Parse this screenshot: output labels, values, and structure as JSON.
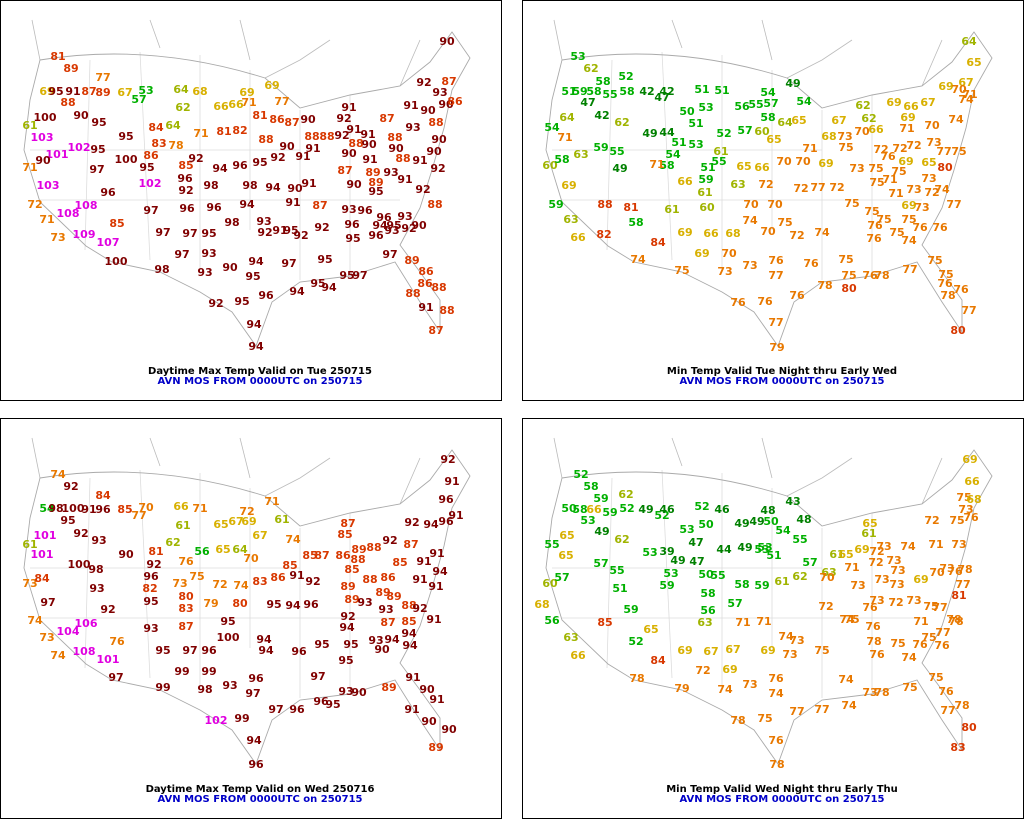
{
  "panels": [
    {
      "title": "Daytime Max Temp Valid on Tue 250715",
      "subtitle": "AVN MOS FROM 0000UTC on 250715",
      "temps": [
        81,
        89,
        77,
        69,
        95,
        91,
        87,
        89,
        88,
        90,
        100,
        95,
        61,
        103,
        95,
        101,
        102,
        90,
        95,
        100,
        71,
        97,
        103,
        96,
        102,
        72,
        108,
        108,
        71,
        85,
        109,
        73,
        107,
        100,
        97,
        97,
        97,
        95,
        97,
        93,
        98,
        93,
        90,
        94,
        95,
        92,
        95,
        96,
        94,
        94,
        94,
        97,
        95,
        95,
        97,
        97,
        67,
        53,
        57,
        64,
        68,
        62,
        64,
        66,
        66,
        71,
        69,
        69,
        81,
        77,
        81,
        82,
        71,
        84,
        83,
        78,
        86,
        95,
        85,
        92,
        96,
        92,
        94,
        98,
        96,
        95,
        98,
        92,
        94,
        88,
        86,
        87,
        90,
        90,
        91,
        90,
        91,
        91,
        88,
        88,
        91,
        92,
        92,
        91,
        91,
        90,
        88,
        90,
        91,
        89,
        87,
        90,
        89,
        87,
        88,
        91,
        93,
        92,
        93,
        90,
        88,
        90,
        90,
        92,
        91,
        88,
        90,
        93,
        91,
        92,
        88,
        95,
        96,
        93,
        96,
        94,
        95,
        96,
        95,
        96,
        93,
        93,
        92,
        90,
        91,
        87,
        92,
        95,
        92,
        91,
        92,
        98,
        93,
        96,
        94,
        96,
        89,
        86,
        86,
        88,
        88,
        91,
        88,
        87,
        95,
        94,
        90,
        87,
        86,
        90
      ]
    },
    {
      "title": "Min Temp Valid Tue Night thru Early Wed",
      "subtitle": "AVN MOS FROM 0000UTC on 250715",
      "temps": [
        53,
        62,
        58,
        52,
        51,
        59,
        58,
        55,
        58,
        42,
        42,
        47,
        47,
        42,
        54,
        64,
        62,
        51,
        51,
        54,
        49,
        50,
        53,
        51,
        56,
        55,
        57,
        54,
        65,
        64,
        58,
        71,
        49,
        44,
        52,
        57,
        60,
        65,
        51,
        53,
        54,
        58,
        55,
        61,
        51,
        59,
        55,
        49,
        60,
        58,
        63,
        69,
        71,
        65,
        66,
        70,
        71,
        70,
        69,
        68,
        73,
        67,
        62,
        62,
        70,
        66,
        69,
        66,
        67,
        69,
        67,
        70,
        74,
        71,
        64,
        65,
        69,
        71,
        70,
        72,
        69,
        65,
        77,
        75,
        80,
        74,
        73,
        72,
        72,
        75,
        73,
        75,
        76,
        71,
        75,
        75,
        72,
        74,
        69,
        73,
        73,
        73,
        71,
        88,
        81,
        59,
        63,
        66,
        82,
        58,
        84,
        69,
        66,
        68,
        69,
        70,
        70,
        70,
        74,
        70,
        75,
        72,
        74,
        72,
        77,
        72,
        59,
        60,
        61,
        66,
        63,
        72,
        75,
        75,
        76,
        76,
        75,
        74,
        75,
        75,
        76,
        76,
        77,
        74,
        75,
        73,
        73,
        76,
        77,
        76,
        75,
        75,
        76,
        78,
        78,
        80,
        77,
        75,
        75,
        76,
        76,
        78,
        77,
        80,
        76,
        76,
        76,
        77,
        79,
        61
      ]
    },
    {
      "title": "Daytime Max Temp Valid on Wed 250716",
      "subtitle": "AVN MOS FROM 0000UTC on 250715",
      "temps": [
        74,
        92,
        84,
        54,
        98,
        100,
        91,
        96,
        95,
        92,
        101,
        93,
        61,
        101,
        90,
        100,
        98,
        73,
        84,
        93,
        92,
        97,
        74,
        104,
        106,
        73,
        76,
        108,
        74,
        101,
        97,
        85,
        70,
        77,
        66,
        71,
        61,
        62,
        65,
        67,
        69,
        72,
        71,
        67,
        61,
        56,
        65,
        64,
        70,
        81,
        92,
        96,
        82,
        95,
        76,
        73,
        75,
        80,
        83,
        72,
        74,
        83,
        86,
        79,
        80,
        95,
        94,
        96,
        85,
        74,
        85,
        87,
        91,
        92,
        93,
        87,
        95,
        97,
        96,
        99,
        99,
        99,
        98,
        93,
        95,
        100,
        94,
        96,
        97,
        94,
        96,
        95,
        94,
        92,
        95,
        95,
        90,
        93,
        94,
        94,
        94,
        91,
        87,
        85,
        97,
        96,
        96,
        95,
        93,
        90,
        89,
        91,
        90,
        91,
        90,
        90,
        89,
        91,
        102,
        99,
        94,
        96,
        97,
        87,
        85,
        86,
        89,
        85,
        88,
        88,
        92,
        87,
        92,
        94,
        96,
        96,
        92,
        91,
        91,
        91,
        91,
        91,
        94,
        91,
        85,
        86,
        88,
        89,
        89,
        89,
        89,
        88,
        92,
        93,
        93
      ]
    },
    {
      "title": "Min Temp Valid Wed Night thru Early Thu",
      "subtitle": "AVN MOS FROM 0000UTC on 250715",
      "temps": [
        52,
        58,
        59,
        62,
        50,
        58,
        66,
        59,
        52,
        49,
        52,
        46,
        52,
        46,
        48,
        43,
        53,
        49,
        55,
        65,
        62,
        53,
        50,
        49,
        49,
        50,
        48,
        54,
        55,
        53,
        60,
        57,
        65,
        57,
        55,
        51,
        53,
        39,
        47,
        49,
        47,
        44,
        49,
        53,
        51,
        50,
        55,
        53,
        59,
        58,
        56,
        57,
        58,
        59,
        61,
        62,
        57,
        63,
        61,
        65,
        69,
        61,
        65,
        72,
        73,
        74,
        72,
        75,
        75,
        68,
        69,
        66,
        73,
        76,
        71,
        73,
        70,
        73,
        69,
        76,
        77,
        78,
        81,
        73,
        73,
        73,
        72,
        71,
        70,
        73,
        73,
        72,
        73,
        73,
        76,
        75,
        77,
        71,
        77,
        78,
        75,
        56,
        63,
        66,
        68,
        85,
        59,
        52,
        84,
        78,
        69,
        67,
        67,
        69,
        72,
        69,
        73,
        73,
        74,
        75,
        72,
        74,
        75,
        76,
        78,
        76,
        75,
        74,
        76,
        76,
        78,
        63,
        71,
        71,
        65,
        79,
        74,
        73,
        76,
        74,
        77,
        74,
        74,
        73,
        78,
        75,
        75,
        76,
        78,
        77,
        80,
        83,
        78,
        75,
        77,
        76,
        78
      ]
    }
  ]
}
